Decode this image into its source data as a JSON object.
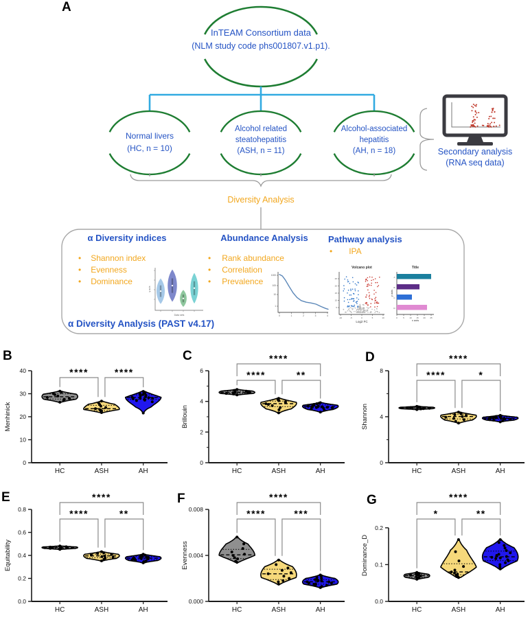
{
  "colors": {
    "blue_text": "#2453C4",
    "orange_text": "#F2A71E",
    "green_arc": "#1E7D32",
    "connector_blue": "#31AAE1",
    "gray_line": "#9A9A9A",
    "sig_bracket": "#8A8A8A",
    "monitor_dark": "#3B3B41",
    "monitor_dot_red": "#C0392B",
    "hc_fill": "#8F8F8F",
    "ash_fill": "#F6D97B",
    "ah_fill": "#2017EE"
  },
  "panel_a": {
    "label": "A",
    "root": {
      "line1": "InTEAM Consortium data",
      "line2": "(NLM study code phs001807.v1.p1)."
    },
    "cohorts": [
      {
        "line1": "Normal livers",
        "line2": "(HC, n = 10)",
        "line3": ""
      },
      {
        "line1": "Alcohol related",
        "line2": "steatohepatitis",
        "line3": "(ASH, n = 11)"
      },
      {
        "line1": "Alcohol-associated",
        "line2": "hepatitis",
        "line3": "(AH, n = 18)"
      }
    ],
    "secondary": {
      "line1": "Secondary analysis",
      "line2": "(RNA seq data)"
    },
    "diversity_label": "Diversity Analysis",
    "box": {
      "col1": {
        "header": "α Diversity indices",
        "bullets": [
          "Shannon index",
          "Evenness",
          "Dominance"
        ]
      },
      "col2": {
        "header": "Abundance Analysis",
        "bullets": [
          "Rank abundance",
          "Correlation",
          "Prevalence"
        ]
      },
      "col3": {
        "header": "Pathway analysis",
        "bullets": [
          "IPA"
        ]
      },
      "footer": "α Diversity Analysis (PAST v4.17)"
    }
  },
  "chart_data": [
    {
      "id": "inset_alpha_violins",
      "type": "violin",
      "context": "alpha-diversity-inset",
      "ylabel": "y axis",
      "xlabel": "Data sets",
      "colors": [
        "#A6C9E8",
        "#7E88CB",
        "#8FC79E",
        "#7AD2D4"
      ],
      "violins": [
        {
          "center": 0.45,
          "halfrange": 0.3
        },
        {
          "center": 0.58,
          "halfrange": 0.38
        },
        {
          "center": 0.28,
          "halfrange": 0.2
        },
        {
          "center": 0.52,
          "halfrange": 0.36
        }
      ]
    },
    {
      "id": "inset_rank_abundance",
      "type": "line",
      "context": "abundance-analysis-inset",
      "yticks": [
        "1000",
        "100",
        "10",
        "1"
      ],
      "xticks": [
        "0",
        "1",
        "2",
        "3",
        "4"
      ],
      "color": "#5B87B8",
      "points_norm": [
        [
          0,
          0.97
        ],
        [
          0.06,
          0.93
        ],
        [
          0.12,
          0.83
        ],
        [
          0.2,
          0.66
        ],
        [
          0.28,
          0.5
        ],
        [
          0.36,
          0.38
        ],
        [
          0.45,
          0.3
        ],
        [
          0.55,
          0.26
        ],
        [
          0.65,
          0.24
        ],
        [
          0.75,
          0.21
        ],
        [
          0.85,
          0.15
        ],
        [
          0.95,
          0.1
        ],
        [
          1,
          0.08
        ]
      ]
    },
    {
      "id": "inset_volcano",
      "type": "scatter",
      "context": "pathway-analysis-inset",
      "title": "Volcano plot",
      "xlabel": "Log2 FC",
      "xticks": [
        "-10",
        "-5",
        "0",
        "5",
        "10"
      ],
      "yticks": [
        "5",
        "10",
        "15",
        "20",
        "25"
      ],
      "point_colors": {
        "up": "#C8342B",
        "down": "#2E74C8",
        "ns": "#B8B8B8"
      }
    },
    {
      "id": "inset_pathway_bars",
      "type": "bar",
      "context": "pathway-analysis-inset",
      "title": "Title",
      "xlabel": "x axis",
      "ylabel": "y axis",
      "categories": [
        "A",
        "B",
        "C",
        "D"
      ],
      "values": [
        25,
        16.5,
        11,
        22
      ],
      "colors": [
        "#1B7F9E",
        "#5C2D87",
        "#2E6FD6",
        "#E08AD2"
      ],
      "xticks": [
        0,
        5,
        10,
        15,
        20,
        25
      ]
    },
    {
      "id": "B",
      "type": "violin_panel",
      "letter": "B",
      "ylabel": "Menhinick",
      "categories": [
        "HC",
        "ASH",
        "AH"
      ],
      "ylim": [
        0,
        40
      ],
      "yticks": [
        0,
        10,
        20,
        30,
        40
      ],
      "yminor": [],
      "ydecimals": 0,
      "series": [
        {
          "name": "HC",
          "values": [
            26.3,
            27.1,
            27.6,
            28.0,
            28.4,
            29.0,
            29.6,
            30.1,
            30.6,
            31.1
          ]
        },
        {
          "name": "ASH",
          "values": [
            21.8,
            22.2,
            22.5,
            22.8,
            23.1,
            23.5,
            24.0,
            24.6,
            25.3,
            26.0,
            26.8
          ]
        },
        {
          "name": "AH",
          "values": [
            21.6,
            26.5,
            27.0,
            27.2,
            27.5,
            27.8,
            28.0,
            28.0,
            28.3,
            28.5,
            28.7,
            29.0,
            29.3,
            29.6,
            30.0,
            30.3,
            30.7,
            31.0
          ]
        }
      ],
      "significance": [
        {
          "a": "HC",
          "b": "ASH",
          "label": "****"
        },
        {
          "a": "ASH",
          "b": "AH",
          "label": "****"
        }
      ]
    },
    {
      "id": "C",
      "type": "violin_panel",
      "letter": "C",
      "ylabel": "Brillouin",
      "categories": [
        "HC",
        "ASH",
        "AH"
      ],
      "ylim": [
        0,
        6
      ],
      "yticks": [
        0,
        2,
        4,
        6
      ],
      "yminor": [
        1,
        3,
        5
      ],
      "ydecimals": 0,
      "series": [
        {
          "name": "HC",
          "values": [
            4.42,
            4.48,
            4.52,
            4.55,
            4.58,
            4.6,
            4.63,
            4.67,
            4.72,
            4.78
          ]
        },
        {
          "name": "ASH",
          "values": [
            3.25,
            3.45,
            3.6,
            3.72,
            3.8,
            3.85,
            3.92,
            3.98,
            4.05,
            4.12,
            4.2
          ]
        },
        {
          "name": "AH",
          "values": [
            3.3,
            3.42,
            3.5,
            3.55,
            3.58,
            3.6,
            3.62,
            3.65,
            3.65,
            3.68,
            3.7,
            3.72,
            3.75,
            3.78,
            3.8,
            3.85,
            3.88,
            3.92
          ]
        }
      ],
      "significance": [
        {
          "a": "HC",
          "b": "AH",
          "label": "****"
        },
        {
          "a": "HC",
          "b": "ASH",
          "label": "****"
        },
        {
          "a": "ASH",
          "b": "AH",
          "label": "**"
        }
      ]
    },
    {
      "id": "D",
      "type": "violin_panel",
      "letter": "D",
      "ylabel": "Shannon",
      "categories": [
        "HC",
        "ASH",
        "AH"
      ],
      "ylim": [
        0,
        8
      ],
      "yticks": [
        0,
        4,
        8
      ],
      "yminor": [
        2,
        6
      ],
      "ydecimals": 0,
      "series": [
        {
          "name": "HC",
          "values": [
            4.62,
            4.68,
            4.7,
            4.73,
            4.75,
            4.78,
            4.8,
            4.83,
            4.86,
            4.9
          ]
        },
        {
          "name": "ASH",
          "values": [
            3.45,
            3.6,
            3.75,
            3.85,
            3.95,
            4.02,
            4.1,
            4.18,
            4.25,
            4.32,
            4.4
          ]
        },
        {
          "name": "AH",
          "values": [
            3.55,
            3.65,
            3.7,
            3.75,
            3.78,
            3.8,
            3.82,
            3.85,
            3.85,
            3.88,
            3.9,
            3.92,
            3.95,
            3.98,
            4.0,
            4.03,
            4.08,
            4.12
          ]
        }
      ],
      "significance": [
        {
          "a": "HC",
          "b": "AH",
          "label": "****"
        },
        {
          "a": "HC",
          "b": "ASH",
          "label": "****"
        },
        {
          "a": "ASH",
          "b": "AH",
          "label": "*"
        }
      ]
    },
    {
      "id": "E",
      "type": "violin_panel",
      "letter": "E",
      "ylabel": "Equitability",
      "categories": [
        "HC",
        "ASH",
        "AH"
      ],
      "ylim": [
        0,
        0.8
      ],
      "yticks": [
        0,
        0.2,
        0.4,
        0.6,
        0.8
      ],
      "yminor": [],
      "ydecimals": 1,
      "series": [
        {
          "name": "HC",
          "values": [
            0.452,
            0.458,
            0.461,
            0.464,
            0.467,
            0.469,
            0.472,
            0.475,
            0.478,
            0.482
          ]
        },
        {
          "name": "ASH",
          "values": [
            0.352,
            0.366,
            0.376,
            0.384,
            0.39,
            0.396,
            0.402,
            0.408,
            0.415,
            0.423,
            0.432
          ]
        },
        {
          "name": "AH",
          "values": [
            0.335,
            0.345,
            0.352,
            0.358,
            0.362,
            0.366,
            0.369,
            0.372,
            0.374,
            0.377,
            0.38,
            0.383,
            0.386,
            0.39,
            0.394,
            0.398,
            0.403,
            0.41
          ]
        }
      ],
      "significance": [
        {
          "a": "HC",
          "b": "AH",
          "label": "****"
        },
        {
          "a": "HC",
          "b": "ASH",
          "label": "****"
        },
        {
          "a": "ASH",
          "b": "AH",
          "label": "**"
        }
      ]
    },
    {
      "id": "F",
      "type": "violin_panel",
      "letter": "F",
      "ylabel": "Evenness",
      "categories": [
        "HC",
        "ASH",
        "AH"
      ],
      "ylim": [
        0,
        0.008
      ],
      "yticks": [
        0,
        0.004,
        0.008
      ],
      "yminor": [],
      "ydecimals": 3,
      "series": [
        {
          "name": "HC",
          "values": [
            0.0034,
            0.0035,
            0.0037,
            0.0038,
            0.004,
            0.0041,
            0.0043,
            0.0046,
            0.005,
            0.0056
          ]
        },
        {
          "name": "ASH",
          "values": [
            0.0015,
            0.0017,
            0.0018,
            0.002,
            0.0022,
            0.0024,
            0.0025,
            0.0027,
            0.0029,
            0.0032,
            0.0036
          ]
        },
        {
          "name": "AH",
          "values": [
            0.0012,
            0.0013,
            0.0014,
            0.0014,
            0.0015,
            0.0015,
            0.0016,
            0.0016,
            0.0017,
            0.0017,
            0.0018,
            0.0018,
            0.0019,
            0.0019,
            0.002,
            0.0021,
            0.0022,
            0.0023
          ]
        }
      ],
      "significance": [
        {
          "a": "HC",
          "b": "AH",
          "label": "****"
        },
        {
          "a": "HC",
          "b": "ASH",
          "label": "****"
        },
        {
          "a": "ASH",
          "b": "AH",
          "label": "***"
        }
      ]
    },
    {
      "id": "G",
      "type": "violin_panel",
      "letter": "G",
      "ylabel": "Dominance_D",
      "categories": [
        "HC",
        "ASH",
        "AH"
      ],
      "ylim": [
        0,
        0.25
      ],
      "yticks": [
        0,
        0.1,
        0.2
      ],
      "yminor": [],
      "ydecimals": 1,
      "series": [
        {
          "name": "HC",
          "values": [
            0.06,
            0.063,
            0.065,
            0.067,
            0.069,
            0.071,
            0.072,
            0.074,
            0.076,
            0.079
          ],
          "w": 0.72
        },
        {
          "name": "ASH",
          "values": [
            0.065,
            0.068,
            0.071,
            0.074,
            0.077,
            0.08,
            0.085,
            0.095,
            0.11,
            0.135,
            0.168
          ]
        },
        {
          "name": "AH",
          "values": [
            0.088,
            0.094,
            0.1,
            0.105,
            0.11,
            0.113,
            0.116,
            0.118,
            0.12,
            0.122,
            0.125,
            0.128,
            0.132,
            0.138,
            0.145,
            0.152,
            0.16,
            0.168
          ]
        }
      ],
      "significance": [
        {
          "a": "HC",
          "b": "AH",
          "label": "****"
        },
        {
          "a": "HC",
          "b": "ASH",
          "label": "*"
        },
        {
          "a": "ASH",
          "b": "AH",
          "label": "**"
        }
      ]
    }
  ]
}
